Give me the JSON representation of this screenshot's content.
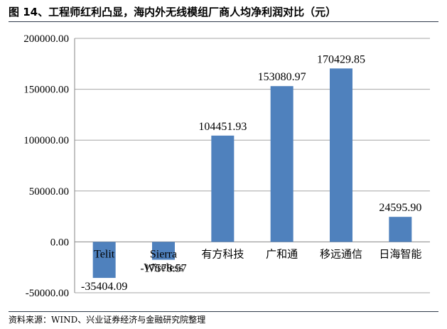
{
  "title": "图 14、工程师红利凸显，海内外无线模组厂商人均净利润对比（元）",
  "source": "资料来源：WIND、兴业证券经济与金融研究院整理",
  "colors": {
    "bar": "#4f81bd",
    "grid": "#a6a6a6",
    "axis": "#868686"
  },
  "chart_data": {
    "type": "bar",
    "title": "图 14、工程师红利凸显，海内外无线模组厂商人均净利润对比（元）",
    "xlabel": "",
    "ylabel": "",
    "ylim": [
      -50000,
      200000
    ],
    "grid": true,
    "yticks": [
      -50000,
      0,
      50000,
      100000,
      150000,
      200000
    ],
    "ytick_labels": [
      "-50000.00",
      "0.00",
      "50000.00",
      "100000.00",
      "150000.00",
      "200000.00"
    ],
    "categories": [
      "Telit",
      "Sierra Wireless",
      "有方科技",
      "广和通",
      "移远通信",
      "日海智能"
    ],
    "category_lines": [
      [
        "Telit"
      ],
      [
        "Sierra",
        "Wireless"
      ],
      [
        "有方科技"
      ],
      [
        "广和通"
      ],
      [
        "移远通信"
      ],
      [
        "日海智能"
      ]
    ],
    "values": [
      -35404.09,
      -17578.57,
      104451.93,
      153080.97,
      170429.85,
      24595.9
    ],
    "value_labels": [
      "-35404.09",
      "-17578.57",
      "104451.93",
      "153080.97",
      "170429.85",
      "24595.90"
    ]
  }
}
